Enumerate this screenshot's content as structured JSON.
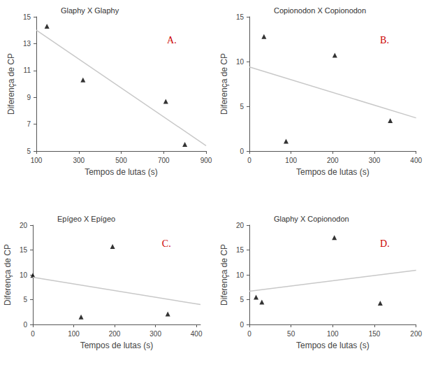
{
  "chart_data": [
    {
      "type": "scatter",
      "title": "Glaphy X Glaphy",
      "annotation": "A.",
      "x_label": "Tempos de lutas (s)",
      "y_label": "Diferença de CP",
      "xlim": [
        100,
        900
      ],
      "xticks": [
        100,
        300,
        500,
        700,
        900
      ],
      "ylim": [
        5,
        15
      ],
      "yticks": [
        5,
        7,
        9,
        11,
        13,
        15
      ],
      "grid": false,
      "series": [
        {
          "type": "scatter",
          "marker": "triangle",
          "color": "#000000",
          "x": [
            150,
            320,
            710,
            800
          ],
          "values": [
            14.3,
            10.3,
            8.7,
            5.5
          ]
        },
        {
          "type": "line",
          "color": "#c8c8c8",
          "x": [
            100,
            900
          ],
          "values": [
            14.0,
            5.4
          ]
        }
      ]
    },
    {
      "type": "scatter",
      "title": "Copionodon X Copionodon",
      "annotation": "B.",
      "x_label": "Tempos de lutas (s)",
      "y_label": "Diferença de CP",
      "xlim": [
        0,
        400
      ],
      "xticks": [
        0,
        100,
        200,
        300,
        400
      ],
      "ylim": [
        0,
        15
      ],
      "yticks": [
        0,
        5,
        10,
        15
      ],
      "grid": false,
      "series": [
        {
          "type": "scatter",
          "marker": "triangle",
          "color": "#000000",
          "x": [
            35,
            88,
            205,
            338
          ],
          "values": [
            12.8,
            1.1,
            10.7,
            3.4
          ]
        },
        {
          "type": "line",
          "color": "#c8c8c8",
          "x": [
            0,
            400
          ],
          "values": [
            9.4,
            3.7
          ]
        }
      ]
    },
    {
      "type": "scatter",
      "title": "Epígeo X Epígeo",
      "annotation": "C.",
      "x_label": "Tempos de lutas (s)",
      "y_label": "Diferença de CP",
      "xlim": [
        0,
        410
      ],
      "xticks": [
        0,
        100,
        200,
        300,
        400
      ],
      "ylim": [
        0,
        20
      ],
      "yticks": [
        0,
        5,
        10,
        15,
        20
      ],
      "grid": false,
      "series": [
        {
          "type": "scatter",
          "marker": "triangle",
          "color": "#000000",
          "x": [
            0,
            118,
            195,
            330
          ],
          "values": [
            9.9,
            1.5,
            15.7,
            2.1
          ]
        },
        {
          "type": "line",
          "color": "#c8c8c8",
          "x": [
            0,
            410
          ],
          "values": [
            9.5,
            4.0
          ]
        }
      ]
    },
    {
      "type": "scatter",
      "title": "Glaphy X Copionodon",
      "annotation": "D.",
      "x_label": "Tempos de lutas (s)",
      "y_label": "Diferença de CP",
      "xlim": [
        0,
        200
      ],
      "xticks": [
        0,
        50,
        100,
        150,
        200
      ],
      "ylim": [
        0,
        20
      ],
      "yticks": [
        0,
        5,
        10,
        15,
        20
      ],
      "grid": false,
      "series": [
        {
          "type": "scatter",
          "marker": "triangle",
          "color": "#000000",
          "x": [
            8,
            15,
            102,
            157
          ],
          "values": [
            5.5,
            4.5,
            17.5,
            4.3
          ]
        },
        {
          "type": "line",
          "color": "#c8c8c8",
          "x": [
            0,
            200
          ],
          "values": [
            6.7,
            10.9
          ]
        }
      ]
    }
  ]
}
